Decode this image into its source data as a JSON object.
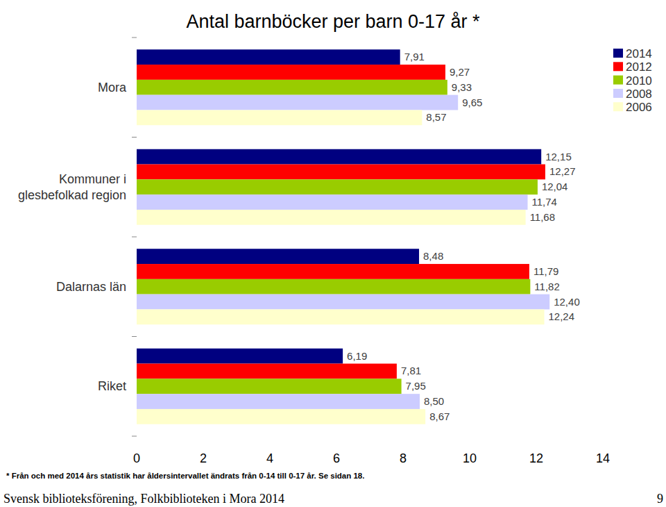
{
  "chart_data": {
    "type": "bar",
    "orientation": "horizontal",
    "title": "Antal barnböcker per barn 0-17 år *",
    "categories": [
      "Mora",
      "Kommuner i glesbefolkad region",
      "Dalarnas län",
      "Riket"
    ],
    "series": [
      {
        "name": "2014",
        "color": "#000080",
        "values": [
          7.91,
          12.15,
          8.48,
          6.19
        ],
        "value_labels": [
          "7,91",
          "12,15",
          "8,48",
          "6,19"
        ]
      },
      {
        "name": "2012",
        "color": "#ff0000",
        "values": [
          9.27,
          12.27,
          11.79,
          7.81
        ],
        "value_labels": [
          "9,27",
          "12,27",
          "11,79",
          "7,81"
        ]
      },
      {
        "name": "2010",
        "color": "#99cc00",
        "values": [
          9.33,
          12.04,
          11.82,
          7.95
        ],
        "value_labels": [
          "9,33",
          "12,04",
          "11,82",
          "7,95"
        ]
      },
      {
        "name": "2008",
        "color": "#ccccff",
        "values": [
          9.65,
          11.74,
          12.4,
          8.5
        ],
        "value_labels": [
          "9,65",
          "11,74",
          "12,40",
          "8,50"
        ]
      },
      {
        "name": "2006",
        "color": "#ffffcc",
        "values": [
          8.57,
          11.68,
          12.24,
          8.67
        ],
        "value_labels": [
          "8,57",
          "11,68",
          "12,24",
          "8,67"
        ]
      }
    ],
    "xlim": [
      0,
      14
    ],
    "xticks": [
      0,
      2,
      4,
      6,
      8,
      10,
      12,
      14
    ],
    "grid": false,
    "legend": "top-right",
    "data_labels": true,
    "annotations": [
      "* Från och med 2014 års statistik har åldersintervallet ändrats från 0-14 till 0-17 år. Se sidan 18.",
      "Svensk biblioteksförening, Folkbiblioteken i Mora 2014",
      "9"
    ]
  }
}
